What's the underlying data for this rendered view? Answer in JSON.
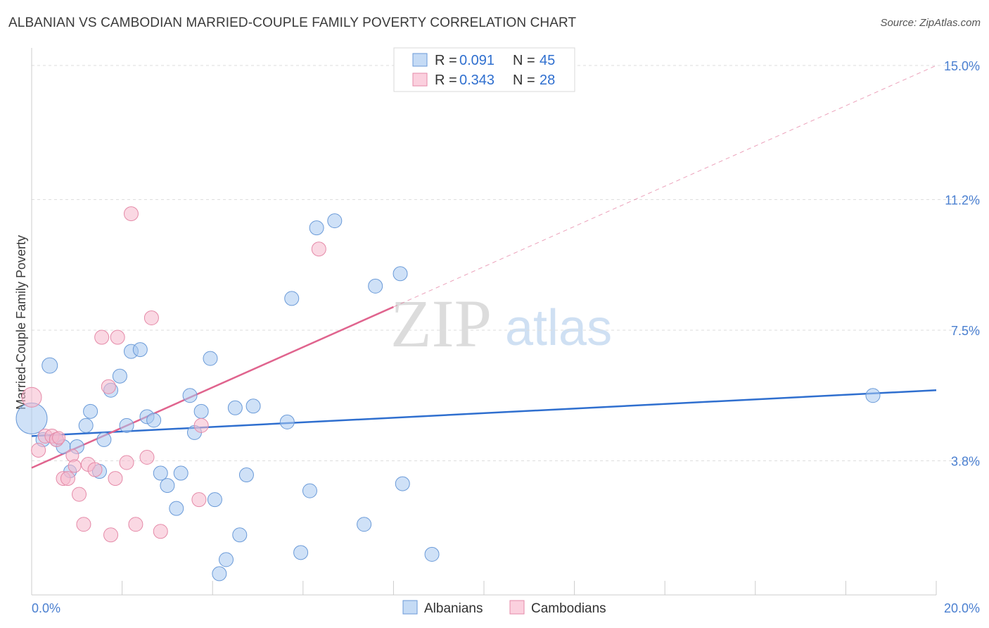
{
  "title": "ALBANIAN VS CAMBODIAN MARRIED-COUPLE FAMILY POVERTY CORRELATION CHART",
  "source": "Source: ZipAtlas.com",
  "watermark": {
    "zip": "ZIP",
    "atlas": "atlas"
  },
  "legend_top": {
    "rows": [
      {
        "r_label": "R =",
        "r_value": "0.091",
        "n_label": "N =",
        "n_value": "45",
        "color": "#a8c8f0"
      },
      {
        "r_label": "R =",
        "r_value": "0.343",
        "n_label": "N =",
        "n_value": "28",
        "color": "#f5b8cc"
      }
    ]
  },
  "chart_data": {
    "type": "scatter",
    "title": "ALBANIAN VS CAMBODIAN MARRIED-COUPLE FAMILY POVERTY CORRELATION CHART",
    "xlabel": "",
    "ylabel": "Married-Couple Family Poverty",
    "xlim": [
      0,
      20
    ],
    "ylim": [
      0,
      15.3
    ],
    "x_tick_labels": [
      "0.0%",
      "20.0%"
    ],
    "y_ticks": [
      3.8,
      7.5,
      11.2,
      15.0
    ],
    "y_tick_labels": [
      "3.8%",
      "7.5%",
      "11.2%",
      "15.0%"
    ],
    "grid": true,
    "legend_position": "bottom-center",
    "series": [
      {
        "name": "Albanians",
        "color": "#a8c8f0",
        "stroke": "#6a9ad8",
        "line_color": "#2f6fcf",
        "trend": {
          "x0": 0,
          "y0": 4.5,
          "x1": 20,
          "y1": 5.8,
          "dashed_from": null
        },
        "points": [
          [
            0.0,
            5.0,
            22
          ],
          [
            0.4,
            6.5,
            11
          ],
          [
            0.25,
            4.4,
            10
          ],
          [
            0.55,
            4.4,
            10
          ],
          [
            0.7,
            4.2,
            10
          ],
          [
            0.85,
            3.5,
            9
          ],
          [
            1.0,
            4.2,
            10
          ],
          [
            1.2,
            4.8,
            10
          ],
          [
            1.3,
            5.2,
            10
          ],
          [
            1.5,
            3.5,
            10
          ],
          [
            1.6,
            4.4,
            10
          ],
          [
            1.75,
            5.8,
            10
          ],
          [
            1.95,
            6.2,
            10
          ],
          [
            2.1,
            4.8,
            10
          ],
          [
            2.2,
            6.9,
            10
          ],
          [
            2.4,
            6.95,
            10
          ],
          [
            2.55,
            5.05,
            10
          ],
          [
            2.7,
            4.95,
            10
          ],
          [
            2.85,
            3.45,
            10
          ],
          [
            3.0,
            3.1,
            10
          ],
          [
            3.2,
            2.45,
            10
          ],
          [
            3.3,
            3.45,
            10
          ],
          [
            3.5,
            5.65,
            10
          ],
          [
            3.6,
            4.6,
            10
          ],
          [
            3.75,
            5.2,
            10
          ],
          [
            3.95,
            6.7,
            10
          ],
          [
            4.05,
            2.7,
            10
          ],
          [
            4.15,
            0.6,
            10
          ],
          [
            4.3,
            1.0,
            10
          ],
          [
            4.5,
            5.3,
            10
          ],
          [
            4.6,
            1.7,
            10
          ],
          [
            4.75,
            3.4,
            10
          ],
          [
            4.9,
            5.35,
            10
          ],
          [
            5.65,
            4.9,
            10
          ],
          [
            5.75,
            8.4,
            10
          ],
          [
            5.95,
            1.2,
            10
          ],
          [
            6.15,
            2.95,
            10
          ],
          [
            6.3,
            10.4,
            10
          ],
          [
            6.7,
            10.6,
            10
          ],
          [
            7.35,
            2.0,
            10
          ],
          [
            7.6,
            8.75,
            10
          ],
          [
            8.15,
            9.1,
            10
          ],
          [
            8.2,
            3.15,
            10
          ],
          [
            8.85,
            1.15,
            10
          ],
          [
            18.6,
            5.65,
            10
          ]
        ]
      },
      {
        "name": "Cambodians",
        "color": "#f5b8cc",
        "stroke": "#e58aa8",
        "line_color": "#e0648e",
        "trend": {
          "x0": 0,
          "y0": 3.6,
          "x1": 20,
          "y1": 15.0,
          "dashed_from": 8.0
        },
        "points": [
          [
            0.0,
            5.6,
            14
          ],
          [
            0.15,
            4.1,
            10
          ],
          [
            0.3,
            4.5,
            10
          ],
          [
            0.45,
            4.5,
            10
          ],
          [
            0.55,
            4.4,
            10
          ],
          [
            0.6,
            4.45,
            9
          ],
          [
            0.7,
            3.3,
            10
          ],
          [
            0.8,
            3.3,
            10
          ],
          [
            0.9,
            3.95,
            9
          ],
          [
            0.95,
            3.65,
            9
          ],
          [
            1.05,
            2.85,
            10
          ],
          [
            1.15,
            2.0,
            10
          ],
          [
            1.25,
            3.7,
            10
          ],
          [
            1.4,
            3.55,
            10
          ],
          [
            1.55,
            7.3,
            10
          ],
          [
            1.7,
            5.9,
            10
          ],
          [
            1.75,
            1.7,
            10
          ],
          [
            1.85,
            3.3,
            10
          ],
          [
            1.9,
            7.3,
            10
          ],
          [
            2.1,
            3.75,
            10
          ],
          [
            2.2,
            10.8,
            10
          ],
          [
            2.3,
            2.0,
            10
          ],
          [
            2.55,
            3.9,
            10
          ],
          [
            2.65,
            7.85,
            10
          ],
          [
            2.85,
            1.8,
            10
          ],
          [
            3.7,
            2.7,
            10
          ],
          [
            3.75,
            4.8,
            10
          ],
          [
            6.35,
            9.8,
            10
          ]
        ]
      }
    ]
  }
}
